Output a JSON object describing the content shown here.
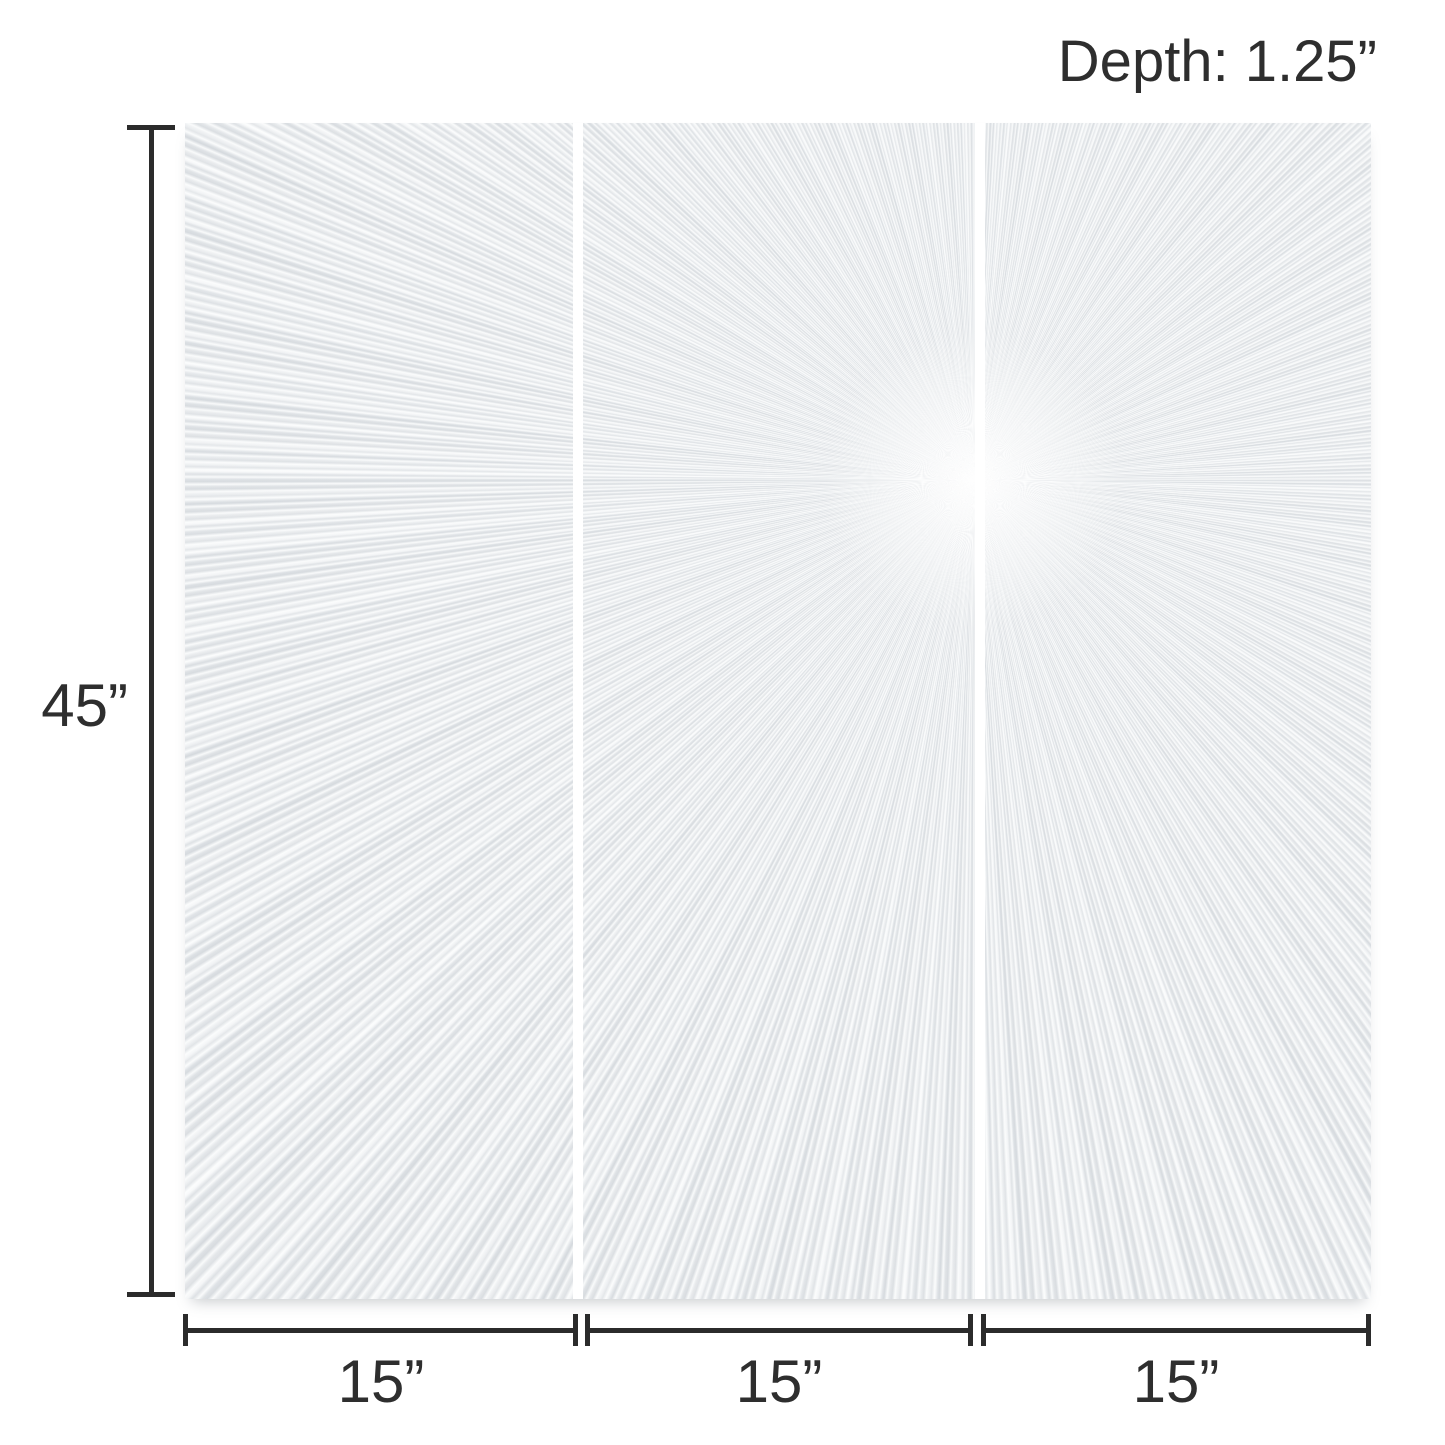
{
  "page": {
    "background_color": "#ffffff"
  },
  "annotation": {
    "text_color": "#2e2e2e",
    "line_color": "#2b2b2b",
    "depth_label": "Depth: 1.25”",
    "height_label": "45”",
    "width_labels": [
      "15”",
      "15”",
      "15”"
    ]
  },
  "artwork": {
    "description": "white plaster sunburst textured wall art triptych, rays radiating from a point on the seam between middle and right panels",
    "panel_count": 3,
    "base_color": "#e9ebed",
    "ridge_highlight_color": "#fcfdfd",
    "ridge_shadow_color": "#cfd4d9",
    "gap_color": "#ffffff"
  }
}
